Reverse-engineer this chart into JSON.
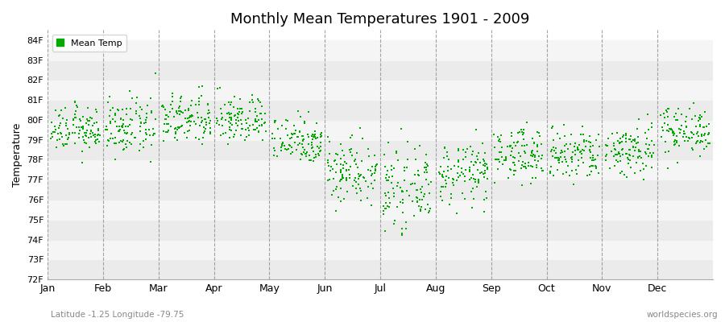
{
  "title": "Monthly Mean Temperatures 1901 - 2009",
  "ylabel": "Temperature",
  "xlabel_labels": [
    "Jan",
    "Feb",
    "Mar",
    "Apr",
    "May",
    "Jun",
    "Jul",
    "Aug",
    "Sep",
    "Oct",
    "Nov",
    "Dec"
  ],
  "subtitle": "Latitude -1.25 Longitude -79.75",
  "watermark": "worldspecies.org",
  "legend_label": "Mean Temp",
  "dot_color": "#00AA00",
  "background_color": "#ffffff",
  "band_colors": [
    "#ebebeb",
    "#f5f5f5"
  ],
  "ytick_labels": [
    "72F",
    "73F",
    "74F",
    "75F",
    "76F",
    "77F",
    "78F",
    "79F",
    "80F",
    "81F",
    "82F",
    "83F",
    "84F"
  ],
  "ytick_values": [
    72,
    73,
    74,
    75,
    76,
    77,
    78,
    79,
    80,
    81,
    82,
    83,
    84
  ],
  "ylim": [
    72,
    84.5
  ],
  "month_means": [
    79.5,
    79.6,
    80.0,
    80.0,
    79.0,
    77.5,
    76.5,
    77.3,
    78.3,
    78.2,
    78.5,
    79.5
  ],
  "month_stds": [
    0.55,
    0.7,
    0.65,
    0.6,
    0.6,
    0.85,
    0.9,
    0.75,
    0.65,
    0.7,
    0.7,
    0.6
  ],
  "n_years": 109,
  "seed": 12345,
  "dot_size": 3,
  "vline_color": "#999999",
  "grid_color": "#ffffff"
}
